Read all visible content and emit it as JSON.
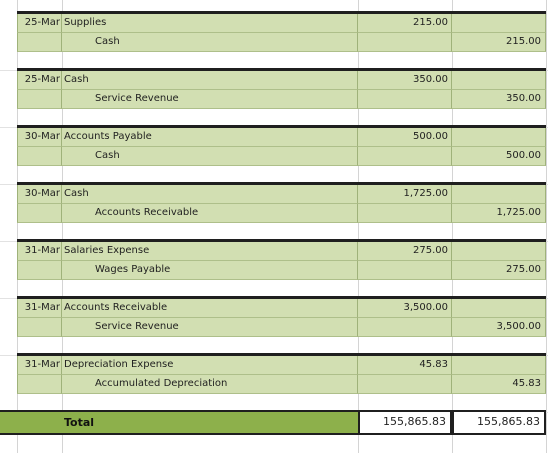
{
  "entries": [
    {
      "date": "25-Mar",
      "debit_account": "Supplies",
      "credit_account": "Cash",
      "debit": "215.00",
      "credit": "215.00"
    },
    {
      "date": "25-Mar",
      "debit_account": "Cash",
      "credit_account": "Service Revenue",
      "debit": "350.00",
      "credit": "350.00"
    },
    {
      "date": "30-Mar",
      "debit_account": "Accounts Payable",
      "credit_account": "Cash",
      "debit": "500.00",
      "credit": "500.00"
    },
    {
      "date": "30-Mar",
      "debit_account": "Cash",
      "credit_account": "Accounts Receivable",
      "debit": "1,725.00",
      "credit": "1,725.00"
    },
    {
      "date": "31-Mar",
      "debit_account": "Salaries Expense",
      "credit_account": "Wages Payable",
      "debit": "275.00",
      "credit": "275.00"
    },
    {
      "date": "31-Mar",
      "debit_account": "Accounts Receivable",
      "credit_account": "Service Revenue",
      "debit": "3,500.00",
      "credit": "3,500.00"
    },
    {
      "date": "31-Mar",
      "debit_account": "Depreciation Expense",
      "credit_account": "Accumulated Depreciation",
      "debit": "45.83",
      "credit": "45.83"
    }
  ],
  "total": {
    "label": "Total",
    "debit": "155,865.83",
    "credit": "155,865.83"
  },
  "colors": {
    "row_fill": "#d2dfb2",
    "total_fill": "#8db04b"
  }
}
